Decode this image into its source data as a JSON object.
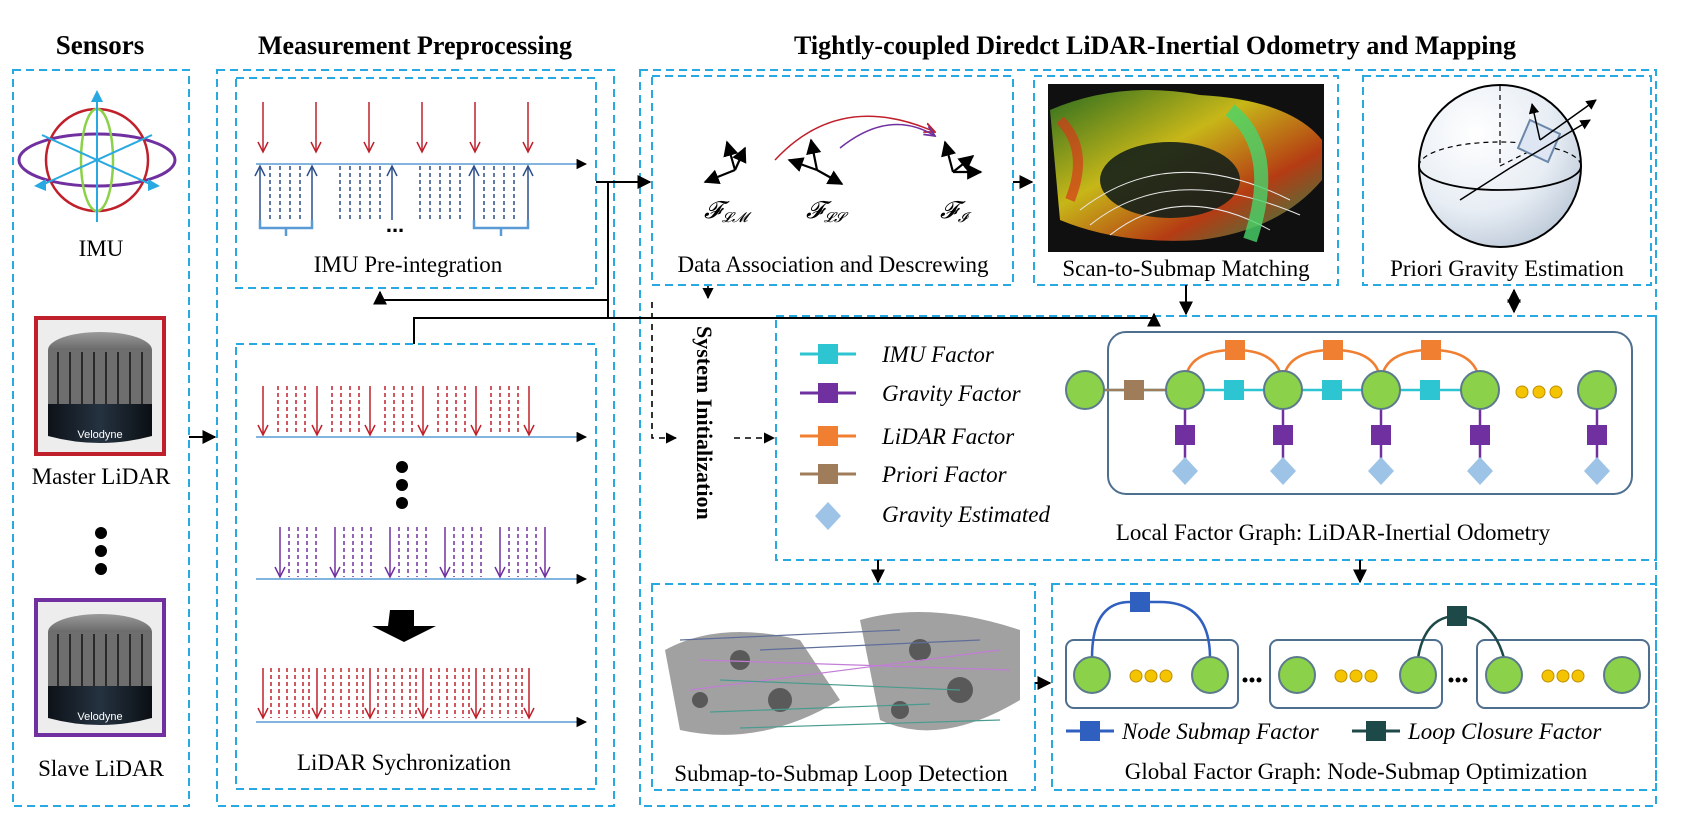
{
  "headers": {
    "sensors": "Sensors",
    "preprocessing": "Measurement Preprocessing",
    "odometry": "Tightly-coupled Diredct LiDAR-Inertial Odometry and Mapping"
  },
  "sensors": {
    "imu": "IMU",
    "master": "Master LiDAR",
    "slave": "Slave LiDAR",
    "brand": "Velodyne"
  },
  "preprocessing": {
    "imu_preintegration": "IMU Pre-integration",
    "lidar_sync": "LiDAR Sychronization",
    "ellipsis": "..."
  },
  "modules": {
    "data_association": "Data Association and Descrewing",
    "scan_to_submap": "Scan-to-Submap Matching",
    "priori_gravity": "Priori Gravity Estimation",
    "system_init": "System Initialization",
    "local_graph": "Local Factor Graph: LiDAR-Inertial Odometry",
    "loop_detection": "Submap-to-Submap Loop Detection",
    "global_graph": "Global Factor Graph:  Node-Submap Optimization"
  },
  "frames": {
    "fm": "𝓕",
    "fm_sub": "𝓛𝓜",
    "fs": "𝓕",
    "fs_sub": "𝓛𝓢",
    "fi": "𝓕",
    "fi_sub": "𝓘"
  },
  "legend": {
    "imu": "IMU Factor",
    "gravity": "Gravity Factor",
    "lidar": "LiDAR Factor",
    "priori": "Priori Factor",
    "gravity_est": "Gravity Estimated",
    "node_submap": "Node Submap Factor",
    "loop_closure": "Loop Closure Factor"
  },
  "colors": {
    "dash_border": "#29a9e1",
    "imu_factor": "#2ec5d3",
    "gravity_factor": "#7030a0",
    "lidar_factor": "#f07f32",
    "priori_factor": "#a07d5a",
    "gravity_est": "#9dc3e6",
    "node": "#8cd14a",
    "node_stroke": "#5b7a8c",
    "dots": "#f5c400",
    "node_submap": "#2f5fbf",
    "loop_closure": "#1d4a48",
    "red_arrow": "#c0202b",
    "blue_arrow": "#5a9bd5",
    "navy_arrow": "#2c4f8c",
    "purple_arrow": "#7030a0"
  }
}
